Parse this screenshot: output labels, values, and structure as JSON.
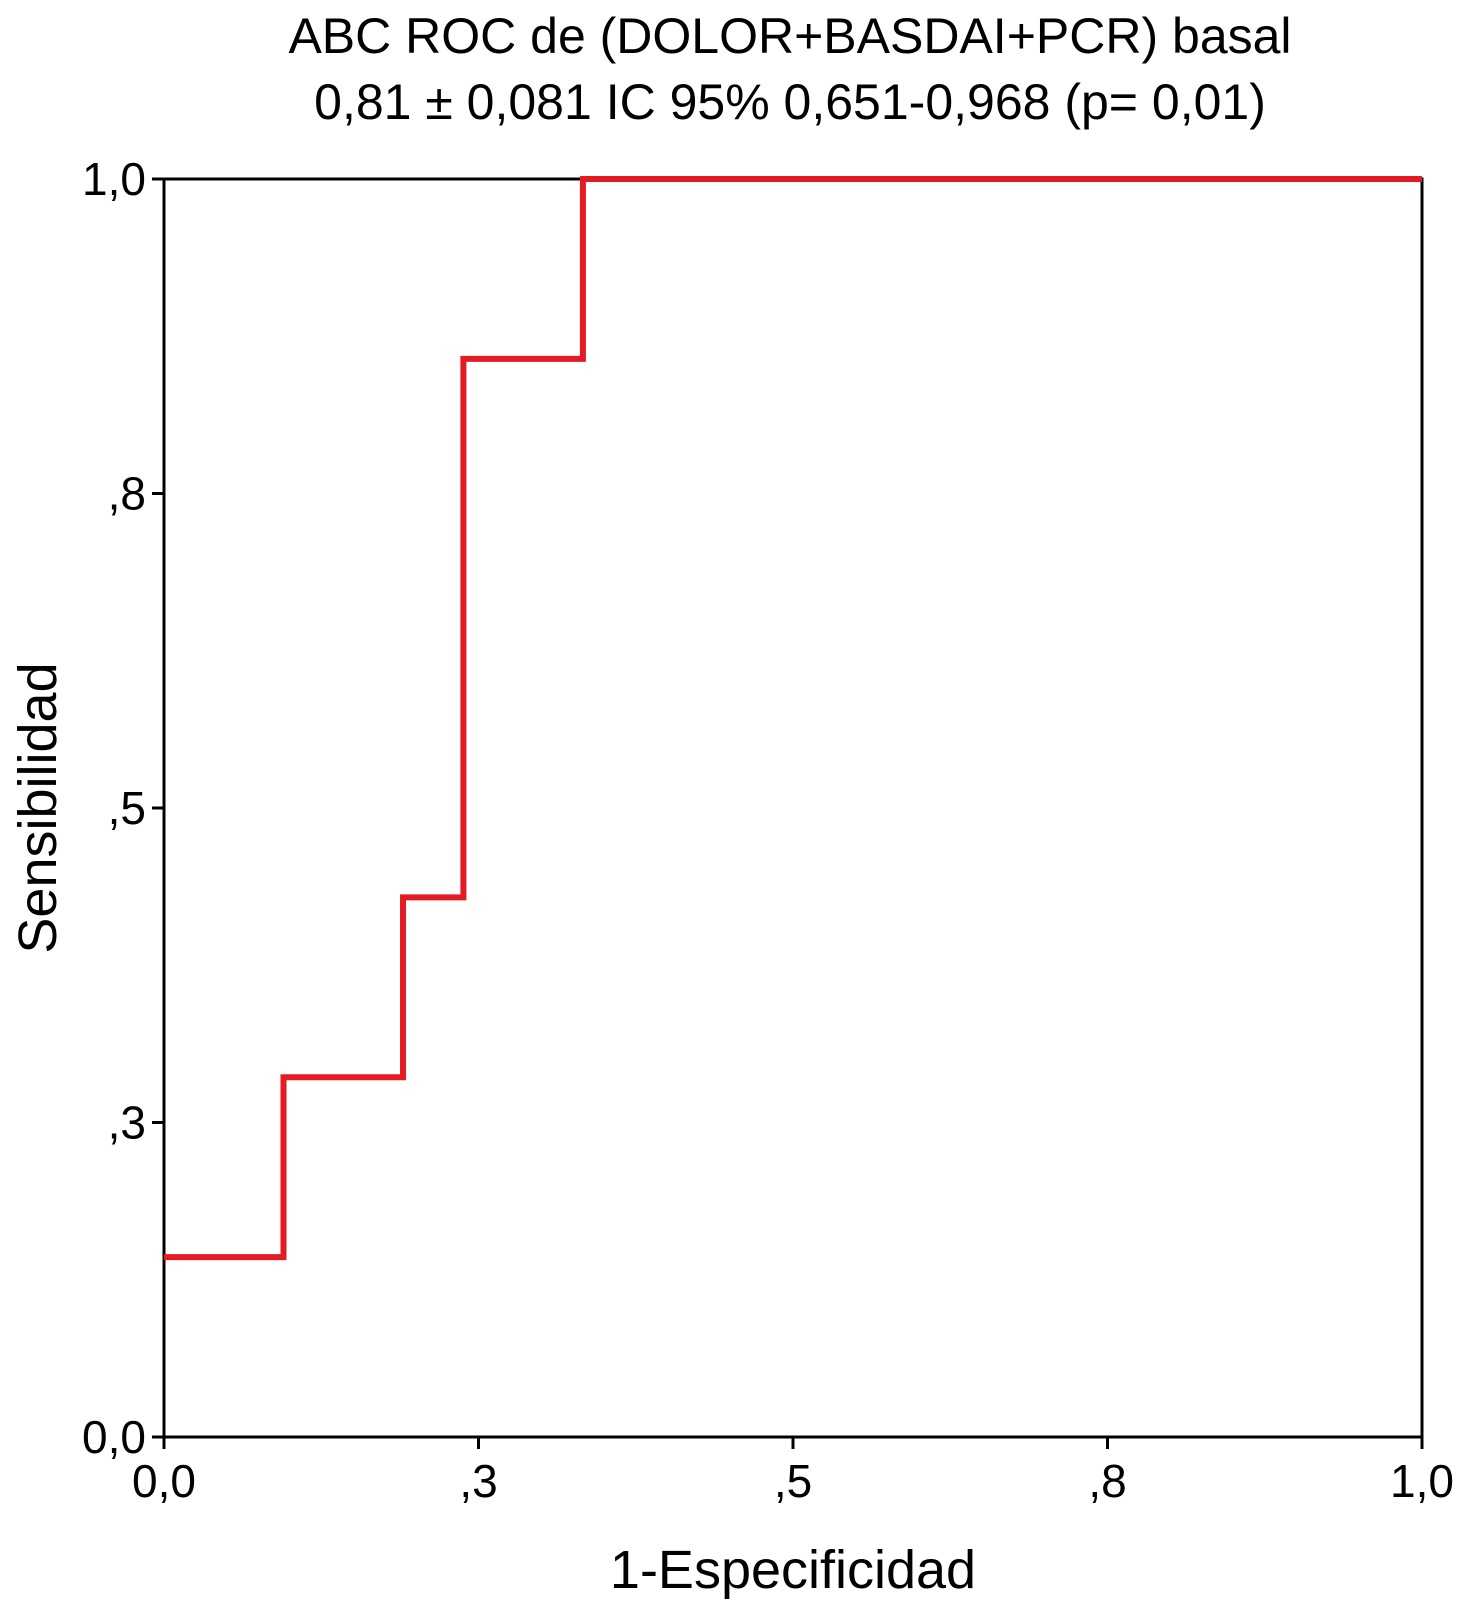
{
  "chart_data": {
    "type": "line",
    "title": "ABC ROC de (DOLOR+BASDAI+PCR) basal",
    "subtitle": "0,81 ± 0,081  IC 95% 0,651-0,968 (p= 0,01)",
    "xlabel": "1-Especificidad",
    "ylabel": "Sensibilidad",
    "xlim": [
      0,
      1
    ],
    "ylim": [
      0,
      1
    ],
    "x_ticks": [
      {
        "value": 0.0,
        "label": "0,0"
      },
      {
        "value": 0.25,
        "label": ",3"
      },
      {
        "value": 0.5,
        "label": ",5"
      },
      {
        "value": 0.75,
        "label": ",8"
      },
      {
        "value": 1.0,
        "label": "1,0"
      }
    ],
    "y_ticks": [
      {
        "value": 0.0,
        "label": "0,0"
      },
      {
        "value": 0.25,
        "label": ",3"
      },
      {
        "value": 0.5,
        "label": ",5"
      },
      {
        "value": 0.75,
        "label": ",8"
      },
      {
        "value": 1.0,
        "label": "1,0"
      }
    ],
    "grid": false,
    "series": [
      {
        "color": "#e31b23",
        "step": true,
        "points": [
          [
            0.0,
            0.143
          ],
          [
            0.095,
            0.143
          ],
          [
            0.095,
            0.286
          ],
          [
            0.19,
            0.286
          ],
          [
            0.19,
            0.429
          ],
          [
            0.238,
            0.429
          ],
          [
            0.238,
            0.857
          ],
          [
            0.333,
            0.857
          ],
          [
            0.333,
            1.0
          ],
          [
            1.0,
            1.0
          ]
        ]
      }
    ]
  }
}
